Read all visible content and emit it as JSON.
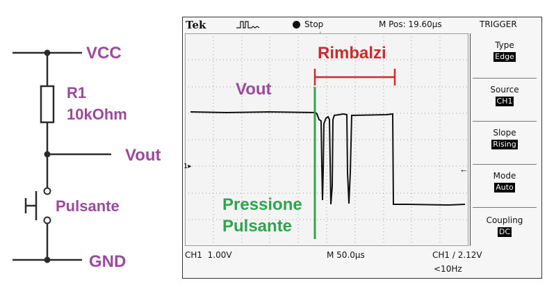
{
  "circuit": {
    "vcc": "VCC",
    "r1_name": "R1",
    "r1_value": "10kOhm",
    "vout": "Vout",
    "button": "Pulsante",
    "gnd": "GND"
  },
  "scope": {
    "brand": "Tek",
    "state": "Stop",
    "mpos": "M Pos: 19.60µs",
    "trigger_title": "TRIGGER",
    "menu": [
      {
        "label": "Type",
        "value": "Edge"
      },
      {
        "label": "Source",
        "value": "CH1"
      },
      {
        "label": "Slope",
        "value": "Rising"
      },
      {
        "label": "Mode",
        "value": "Auto"
      },
      {
        "label": "Coupling",
        "value": "DC"
      }
    ],
    "ch1_scale": "CH1  1.00V",
    "time_scale": "M 50.0µs",
    "trigger_level": "CH1 ∕ 2.12V",
    "trigger_freq": "<10Hz",
    "ch_marker": "1"
  },
  "annotations": {
    "bounce": "Rimbalzi",
    "vout": "Vout",
    "press_line1": "Pressione",
    "press_line2": "Pulsante"
  },
  "colors": {
    "purple": "#9a4a9c",
    "green": "#2ea44f",
    "red": "#cc2b2b"
  }
}
